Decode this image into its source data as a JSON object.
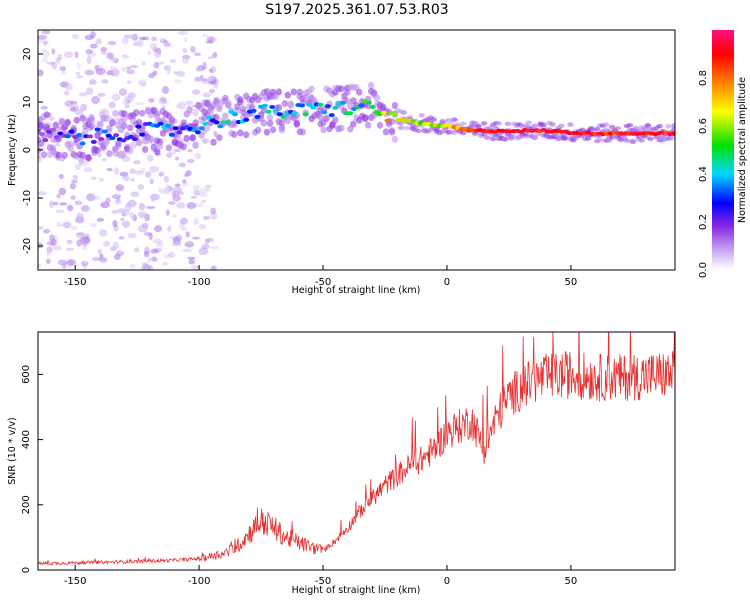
{
  "title": "S197.2025.361.07.53.R03",
  "chart_data": [
    {
      "type": "heatmap",
      "name": "spectrogram",
      "xlabel": "Height of straight line (km)",
      "ylabel": "Frequency (Hz)",
      "xlim": [
        -165,
        92
      ],
      "ylim": [
        -25,
        25
      ],
      "xticks": [
        -150,
        -100,
        -50,
        0,
        50
      ],
      "yticks": [
        -20,
        -10,
        0,
        10,
        20
      ],
      "colorbar": {
        "label": "Normalized spectral amplitude",
        "range": [
          0,
          1
        ],
        "ticks": [
          "0.0",
          "0.2",
          "0.4",
          "0.6",
          "0.8"
        ],
        "tick_values": [
          0.0,
          0.2,
          0.4,
          0.6,
          0.8
        ],
        "colors": [
          "#ffffff",
          "#c8a8f0",
          "#8a2be2",
          "#0000ff",
          "#00d8ff",
          "#00e000",
          "#ffff00",
          "#ff8000",
          "#ff0000",
          "#ff1080"
        ]
      },
      "ridge": {
        "x": [
          -160,
          -150,
          -140,
          -130,
          -120,
          -110,
          -100,
          -90,
          -80,
          -70,
          -60,
          -50,
          -40,
          -30,
          -25,
          -15,
          -5,
          0,
          5,
          10,
          15,
          25,
          40,
          55,
          70,
          90
        ],
        "freq": [
          3,
          2.5,
          2.8,
          3.5,
          4.0,
          4.2,
          5.0,
          6.5,
          7.5,
          8.0,
          8.0,
          8.5,
          8.8,
          9.0,
          7.0,
          6.0,
          5.0,
          5.0,
          4.5,
          4.0,
          4.0,
          4.0,
          4.0,
          3.5,
          3.5,
          3.5
        ],
        "amplitude": [
          0.25,
          0.3,
          0.3,
          0.3,
          0.35,
          0.35,
          0.35,
          0.4,
          0.4,
          0.4,
          0.45,
          0.45,
          0.45,
          0.5,
          0.7,
          0.65,
          0.65,
          0.7,
          0.75,
          0.8,
          0.9,
          0.9,
          0.9,
          0.9,
          0.9,
          0.9
        ]
      }
    },
    {
      "type": "line",
      "name": "snr",
      "xlabel": "Height of straight line (km)",
      "ylabel": "SNR (10 * v/v)",
      "xlim": [
        -165,
        92
      ],
      "ylim": [
        0,
        730
      ],
      "xticks": [
        -150,
        -100,
        -50,
        0,
        50
      ],
      "yticks": [
        0,
        200,
        400,
        600
      ],
      "color": "#e83030",
      "series": [
        {
          "name": "SNR",
          "x": [
            -165,
            -150,
            -130,
            -110,
            -100,
            -90,
            -85,
            -80,
            -75,
            -70,
            -65,
            -60,
            -55,
            -50,
            -45,
            -40,
            -35,
            -30,
            -25,
            -20,
            -15,
            -10,
            -5,
            0,
            5,
            10,
            15,
            20,
            25,
            30,
            35,
            40,
            50,
            60,
            70,
            80,
            92
          ],
          "values": [
            20,
            22,
            25,
            30,
            35,
            50,
            70,
            110,
            150,
            130,
            100,
            85,
            70,
            60,
            90,
            130,
            180,
            220,
            260,
            290,
            320,
            340,
            370,
            420,
            440,
            460,
            370,
            470,
            530,
            560,
            580,
            590,
            600,
            590,
            590,
            595,
            600
          ]
        }
      ]
    }
  ]
}
